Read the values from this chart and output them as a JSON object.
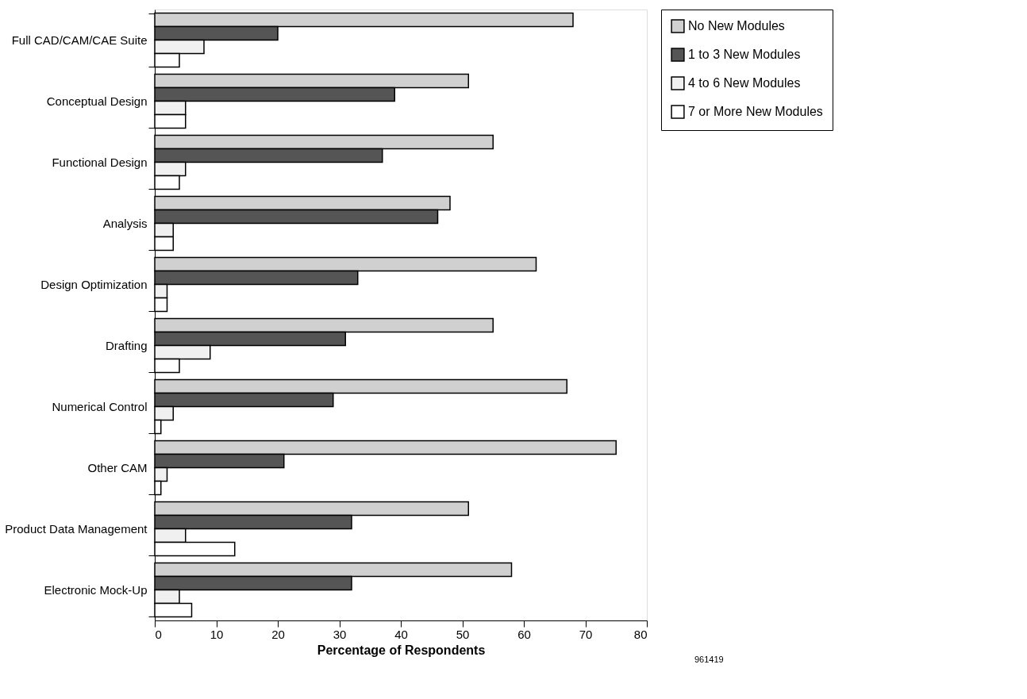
{
  "chart_data": {
    "type": "bar",
    "orientation": "horizontal",
    "xlabel": "Percentage of Respondents",
    "categories": [
      "Full CAD/CAM/CAE Suite",
      "Conceptual Design",
      "Functional Design",
      "Analysis",
      "Design Optimization",
      "Drafting",
      "Numerical Control",
      "Other CAM",
      "Product Data Management",
      "Electronic Mock-Up"
    ],
    "series": [
      {
        "name": "No New Modules",
        "color": "#d0d0d0",
        "values": [
          68,
          51,
          55,
          48,
          62,
          55,
          67,
          75,
          51,
          58
        ]
      },
      {
        "name": "1 to 3 New Modules",
        "color": "#555555",
        "values": [
          20,
          39,
          37,
          46,
          33,
          31,
          29,
          21,
          32,
          32
        ]
      },
      {
        "name": "4 to 6 New Modules",
        "color": "#f0f0f0",
        "values": [
          8,
          5,
          5,
          3,
          2,
          9,
          3,
          2,
          5,
          4
        ]
      },
      {
        "name": "7 or More New Modules",
        "color": "#ffffff",
        "values": [
          4,
          5,
          4,
          3,
          2,
          4,
          1,
          1,
          13,
          6
        ]
      }
    ],
    "xlim": [
      0,
      80
    ],
    "xticks": [
      0,
      10,
      20,
      30,
      40,
      50,
      60,
      70,
      80
    ],
    "grid": false,
    "legend": "top right",
    "annotations": [
      "961419"
    ]
  }
}
